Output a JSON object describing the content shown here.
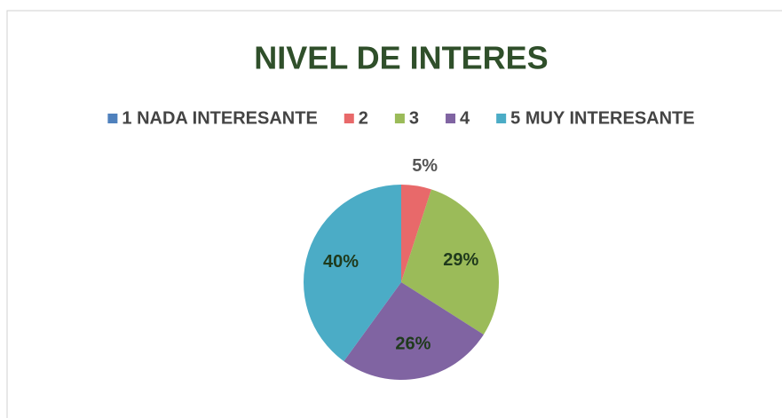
{
  "chart_data": {
    "type": "pie",
    "title": "NIVEL DE INTERES",
    "categories": [
      "1 NADA INTERESANTE",
      "2",
      "3",
      "4",
      "5 MUY INTERESANTE"
    ],
    "values": [
      0,
      5,
      29,
      26,
      40
    ],
    "value_labels": [
      null,
      "5%",
      "29%",
      "26%",
      "40%"
    ],
    "colors": [
      "#4f81bd",
      "#e8696a",
      "#9bbb59",
      "#8064a2",
      "#4bacc6"
    ],
    "legend": "top"
  }
}
